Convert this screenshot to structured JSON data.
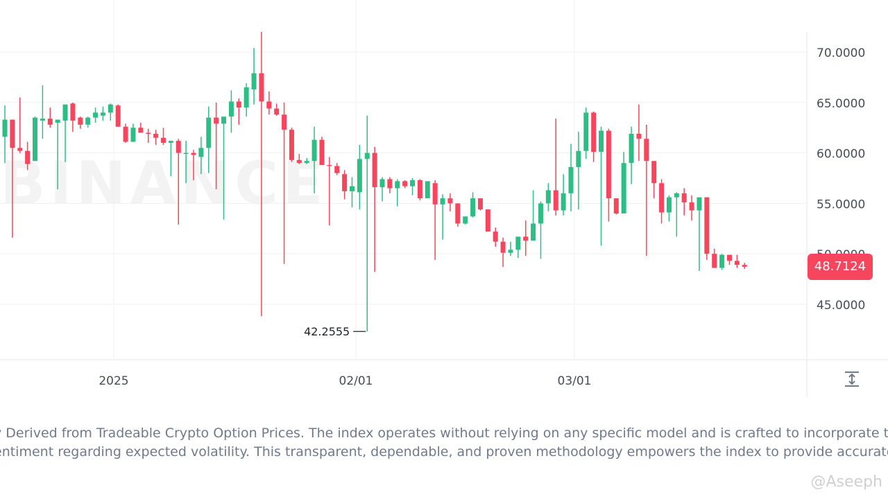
{
  "watermark": "BINANCE",
  "handle": "@Aseeph",
  "description": {
    "line1": "y Derived from Tradeable Crypto Option Prices. The index operates without relying on any specific model and is crafted to incorporate the",
    "line2": "entiment regarding expected volatility. This transparent, dependable, and proven methodology empowers the index to provide accurate and"
  },
  "colors": {
    "up": "#2ebd85",
    "down": "#f6465d",
    "grid": "#f0f1f3",
    "axis_text": "#474d57",
    "description_text": "#707a8a"
  },
  "chart_data": {
    "type": "candlestick",
    "title": "",
    "xlabel": "",
    "ylabel": "",
    "x_ticks": [
      "2025",
      "02/01",
      "03/01"
    ],
    "y_ticks": [
      "45.0000",
      "50.0000",
      "55.0000",
      "60.0000",
      "65.0000",
      "70.0000"
    ],
    "ylim": [
      39.5,
      72
    ],
    "current_price": "48.7124",
    "min_label": "42.2555",
    "grid": true,
    "candles": [
      {
        "o": 61.6,
        "h": 64.7,
        "l": 59.0,
        "c": 63.3
      },
      {
        "o": 63.3,
        "h": 63.3,
        "l": 51.6,
        "c": 60.5
      },
      {
        "o": 60.5,
        "h": 65.5,
        "l": 60.0,
        "c": 60.2
      },
      {
        "o": 60.2,
        "h": 61.1,
        "l": 58.3,
        "c": 58.9
      },
      {
        "o": 59.2,
        "h": 63.6,
        "l": 59.2,
        "c": 63.5
      },
      {
        "o": 63.2,
        "h": 66.7,
        "l": 61.4,
        "c": 63.4
      },
      {
        "o": 63.4,
        "h": 64.5,
        "l": 62.5,
        "c": 62.8
      },
      {
        "o": 63.0,
        "h": 63.3,
        "l": 56.4,
        "c": 63.3
      },
      {
        "o": 63.2,
        "h": 64.8,
        "l": 59.1,
        "c": 64.8
      },
      {
        "o": 64.9,
        "h": 65.0,
        "l": 62.1,
        "c": 63.2
      },
      {
        "o": 63.5,
        "h": 63.6,
        "l": 62.4,
        "c": 62.8
      },
      {
        "o": 62.8,
        "h": 63.6,
        "l": 62.5,
        "c": 63.5
      },
      {
        "o": 63.5,
        "h": 64.5,
        "l": 63.0,
        "c": 64.0
      },
      {
        "o": 63.7,
        "h": 64.6,
        "l": 63.2,
        "c": 64.0
      },
      {
        "o": 64.0,
        "h": 64.9,
        "l": 63.2,
        "c": 64.8
      },
      {
        "o": 64.7,
        "h": 64.8,
        "l": 62.6,
        "c": 62.6
      },
      {
        "o": 62.6,
        "h": 62.9,
        "l": 61.0,
        "c": 61.1
      },
      {
        "o": 61.1,
        "h": 62.9,
        "l": 61.1,
        "c": 62.5
      },
      {
        "o": 62.5,
        "h": 63.0,
        "l": 62.0,
        "c": 62.0
      },
      {
        "o": 62.0,
        "h": 62.4,
        "l": 61.0,
        "c": 61.9
      },
      {
        "o": 61.9,
        "h": 62.3,
        "l": 60.8,
        "c": 61.5
      },
      {
        "o": 61.5,
        "h": 62.5,
        "l": 60.8,
        "c": 61.0
      },
      {
        "o": 61.0,
        "h": 61.2,
        "l": 57.7,
        "c": 61.2
      },
      {
        "o": 61.2,
        "h": 61.4,
        "l": 52.9,
        "c": 60.0
      },
      {
        "o": 60.0,
        "h": 61.2,
        "l": 57.0,
        "c": 60.0
      },
      {
        "o": 60.0,
        "h": 60.3,
        "l": 57.3,
        "c": 59.8
      },
      {
        "o": 59.6,
        "h": 61.6,
        "l": 57.9,
        "c": 60.5
      },
      {
        "o": 60.5,
        "h": 64.6,
        "l": 58.0,
        "c": 63.5
      },
      {
        "o": 63.5,
        "h": 65.0,
        "l": 56.4,
        "c": 62.9
      },
      {
        "o": 62.9,
        "h": 63.4,
        "l": 53.4,
        "c": 63.6
      },
      {
        "o": 63.6,
        "h": 66.2,
        "l": 62.0,
        "c": 65.1
      },
      {
        "o": 65.1,
        "h": 65.4,
        "l": 62.8,
        "c": 64.5
      },
      {
        "o": 64.5,
        "h": 66.9,
        "l": 63.6,
        "c": 66.5
      },
      {
        "o": 66.3,
        "h": 70.4,
        "l": 64.8,
        "c": 67.9
      },
      {
        "o": 67.9,
        "h": 72.0,
        "l": 43.8,
        "c": 65.1
      },
      {
        "o": 65.1,
        "h": 66.1,
        "l": 63.8,
        "c": 64.4
      },
      {
        "o": 64.4,
        "h": 64.9,
        "l": 63.7,
        "c": 63.8
      },
      {
        "o": 63.8,
        "h": 65.0,
        "l": 49.0,
        "c": 62.3
      },
      {
        "o": 62.3,
        "h": 62.5,
        "l": 59.1,
        "c": 59.3
      },
      {
        "o": 59.3,
        "h": 59.9,
        "l": 58.9,
        "c": 59.0
      },
      {
        "o": 59.0,
        "h": 59.5,
        "l": 58.9,
        "c": 59.2
      },
      {
        "o": 59.2,
        "h": 62.6,
        "l": 56.0,
        "c": 61.3
      },
      {
        "o": 61.3,
        "h": 61.6,
        "l": 58.8,
        "c": 58.8
      },
      {
        "o": 58.8,
        "h": 59.6,
        "l": 52.8,
        "c": 58.7
      },
      {
        "o": 58.7,
        "h": 59.0,
        "l": 57.8,
        "c": 58.0
      },
      {
        "o": 57.9,
        "h": 58.3,
        "l": 55.4,
        "c": 56.2
      },
      {
        "o": 56.2,
        "h": 57.6,
        "l": 54.6,
        "c": 56.7
      },
      {
        "o": 56.1,
        "h": 60.8,
        "l": 54.4,
        "c": 59.4
      },
      {
        "o": 59.4,
        "h": 63.7,
        "l": 42.3,
        "c": 60.0
      },
      {
        "o": 60.0,
        "h": 60.6,
        "l": 48.2,
        "c": 56.6
      },
      {
        "o": 56.6,
        "h": 57.6,
        "l": 55.2,
        "c": 57.4
      },
      {
        "o": 57.4,
        "h": 57.6,
        "l": 56.0,
        "c": 56.5
      },
      {
        "o": 56.5,
        "h": 57.4,
        "l": 54.7,
        "c": 57.2
      },
      {
        "o": 57.2,
        "h": 57.3,
        "l": 56.5,
        "c": 56.7
      },
      {
        "o": 56.7,
        "h": 57.5,
        "l": 55.8,
        "c": 57.3
      },
      {
        "o": 57.3,
        "h": 57.4,
        "l": 55.3,
        "c": 55.5
      },
      {
        "o": 55.5,
        "h": 57.2,
        "l": 55.5,
        "c": 57.2
      },
      {
        "o": 57.0,
        "h": 57.3,
        "l": 49.4,
        "c": 54.9
      },
      {
        "o": 54.9,
        "h": 55.9,
        "l": 51.4,
        "c": 55.5
      },
      {
        "o": 55.5,
        "h": 56.0,
        "l": 54.2,
        "c": 55.0
      },
      {
        "o": 55.0,
        "h": 55.0,
        "l": 52.7,
        "c": 53.0
      },
      {
        "o": 53.0,
        "h": 53.7,
        "l": 52.9,
        "c": 53.7
      },
      {
        "o": 53.7,
        "h": 56.1,
        "l": 53.6,
        "c": 55.5
      },
      {
        "o": 55.5,
        "h": 55.5,
        "l": 54.3,
        "c": 54.4
      },
      {
        "o": 54.4,
        "h": 54.4,
        "l": 52.2,
        "c": 52.2
      },
      {
        "o": 52.2,
        "h": 52.6,
        "l": 50.7,
        "c": 51.2
      },
      {
        "o": 51.2,
        "h": 51.6,
        "l": 48.7,
        "c": 50.1
      },
      {
        "o": 50.1,
        "h": 51.2,
        "l": 49.8,
        "c": 50.4
      },
      {
        "o": 50.4,
        "h": 51.5,
        "l": 49.6,
        "c": 51.7
      },
      {
        "o": 51.7,
        "h": 53.3,
        "l": 49.8,
        "c": 51.3
      },
      {
        "o": 51.3,
        "h": 56.3,
        "l": 51.3,
        "c": 53.0
      },
      {
        "o": 53.0,
        "h": 55.2,
        "l": 49.5,
        "c": 55.0
      },
      {
        "o": 55.0,
        "h": 57.0,
        "l": 54.2,
        "c": 56.3
      },
      {
        "o": 56.3,
        "h": 63.4,
        "l": 53.8,
        "c": 54.3
      },
      {
        "o": 54.3,
        "h": 57.9,
        "l": 53.8,
        "c": 56.0
      },
      {
        "o": 56.0,
        "h": 60.9,
        "l": 54.2,
        "c": 58.6
      },
      {
        "o": 58.6,
        "h": 62.1,
        "l": 54.4,
        "c": 60.2
      },
      {
        "o": 60.2,
        "h": 64.5,
        "l": 59.4,
        "c": 64.0
      },
      {
        "o": 64.0,
        "h": 64.1,
        "l": 59.1,
        "c": 60.1
      },
      {
        "o": 60.1,
        "h": 62.6,
        "l": 50.8,
        "c": 62.2
      },
      {
        "o": 62.2,
        "h": 62.4,
        "l": 53.2,
        "c": 55.5
      },
      {
        "o": 55.5,
        "h": 55.5,
        "l": 53.9,
        "c": 54.0
      },
      {
        "o": 54.0,
        "h": 60.1,
        "l": 54.0,
        "c": 59.0
      },
      {
        "o": 59.0,
        "h": 62.6,
        "l": 56.9,
        "c": 61.9
      },
      {
        "o": 61.9,
        "h": 64.8,
        "l": 59.2,
        "c": 61.4
      },
      {
        "o": 61.4,
        "h": 62.8,
        "l": 49.8,
        "c": 59.2
      },
      {
        "o": 59.2,
        "h": 59.2,
        "l": 55.5,
        "c": 57.0
      },
      {
        "o": 57.0,
        "h": 57.4,
        "l": 53.0,
        "c": 54.1
      },
      {
        "o": 54.1,
        "h": 55.8,
        "l": 53.2,
        "c": 55.6
      },
      {
        "o": 55.6,
        "h": 56.1,
        "l": 51.7,
        "c": 56.0
      },
      {
        "o": 56.0,
        "h": 56.5,
        "l": 53.8,
        "c": 55.1
      },
      {
        "o": 55.1,
        "h": 55.8,
        "l": 53.3,
        "c": 54.3
      },
      {
        "o": 54.3,
        "h": 55.6,
        "l": 48.3,
        "c": 55.6
      },
      {
        "o": 55.6,
        "h": 55.6,
        "l": 49.4,
        "c": 50.0
      },
      {
        "o": 50.0,
        "h": 50.5,
        "l": 48.6,
        "c": 48.6
      },
      {
        "o": 48.6,
        "h": 50.0,
        "l": 48.4,
        "c": 49.9
      },
      {
        "o": 49.9,
        "h": 49.9,
        "l": 48.9,
        "c": 49.3
      },
      {
        "o": 49.3,
        "h": 49.9,
        "l": 48.6,
        "c": 48.9
      },
      {
        "o": 48.9,
        "h": 49.1,
        "l": 48.5,
        "c": 48.7124
      }
    ]
  }
}
